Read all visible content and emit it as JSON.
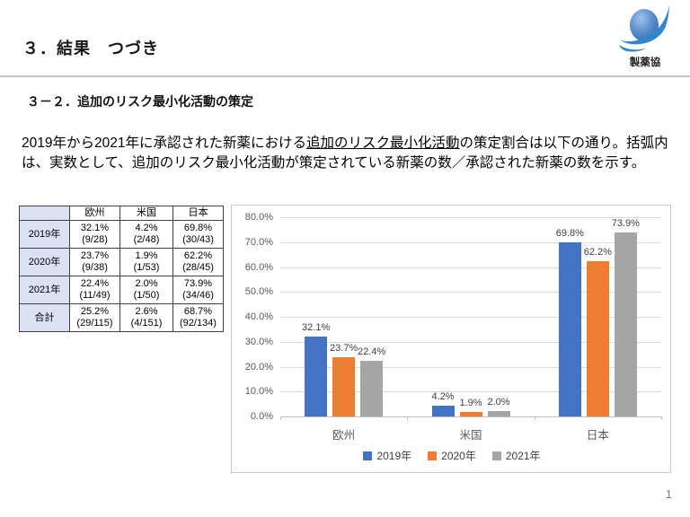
{
  "slide": {
    "title": "３．結果　つづき",
    "page_number": "1"
  },
  "logo": {
    "text": "製薬協"
  },
  "section": {
    "heading": "３－２．追加のリスク最小化活動の策定"
  },
  "paragraph": {
    "before_underline": "2019年から2021年に承認された新薬における",
    "underlined": "追加のリスク最小化活動",
    "after_underline": "の策定割合は以下の通り。括弧内は、実数として、追加のリスク最小化活動が策定されている新薬の数／承認された新薬の数を示す。"
  },
  "table": {
    "col_headers": [
      "",
      "欧州",
      "米国",
      "日本"
    ],
    "rows": [
      {
        "label": "2019年",
        "cells": [
          {
            "pct": "32.1%",
            "frac": "(9/28)"
          },
          {
            "pct": "4.2%",
            "frac": "(2/48)"
          },
          {
            "pct": "69.8%",
            "frac": "(30/43)"
          }
        ]
      },
      {
        "label": "2020年",
        "cells": [
          {
            "pct": "23.7%",
            "frac": "(9/38)"
          },
          {
            "pct": "1.9%",
            "frac": "(1/53)"
          },
          {
            "pct": "62.2%",
            "frac": "(28/45)"
          }
        ]
      },
      {
        "label": "2021年",
        "cells": [
          {
            "pct": "22.4%",
            "frac": "(11/49)"
          },
          {
            "pct": "2.0%",
            "frac": "(1/50)"
          },
          {
            "pct": "73.9%",
            "frac": "(34/46)"
          }
        ]
      },
      {
        "label": "合計",
        "cells": [
          {
            "pct": "25.2%",
            "frac": "(29/115)"
          },
          {
            "pct": "2.6%",
            "frac": "(4/151)"
          },
          {
            "pct": "68.7%",
            "frac": "(92/134)"
          }
        ]
      }
    ]
  },
  "chart_data": {
    "type": "bar",
    "title": "",
    "xlabel": "",
    "ylabel": "",
    "categories": [
      "欧州",
      "米国",
      "日本"
    ],
    "series": [
      {
        "name": "2019年",
        "color": "#4472C4",
        "values": [
          32.1,
          4.2,
          69.8
        ],
        "data_labels": [
          "32.1%",
          "4.2%",
          "69.8%"
        ]
      },
      {
        "name": "2020年",
        "color": "#ED7D31",
        "values": [
          23.7,
          1.9,
          62.2
        ],
        "data_labels": [
          "23.7%",
          "1.9%",
          "62.2%"
        ]
      },
      {
        "name": "2021年",
        "color": "#A5A5A5",
        "values": [
          22.4,
          2.0,
          73.9
        ],
        "data_labels": [
          "22.4%",
          "2.0%",
          "73.9%"
        ]
      }
    ],
    "ylim": [
      0,
      80
    ],
    "ytick_step": 10,
    "yticks": [
      "0.0%",
      "10.0%",
      "20.0%",
      "30.0%",
      "40.0%",
      "50.0%",
      "60.0%",
      "70.0%",
      "80.0%"
    ],
    "grid": true,
    "legend_position": "bottom"
  },
  "colors": {
    "series_blue": "#4472C4",
    "series_orange": "#ED7D31",
    "series_gray": "#A5A5A5",
    "table_shade": "#dbe1f2",
    "gridline": "#d9d9d9"
  }
}
